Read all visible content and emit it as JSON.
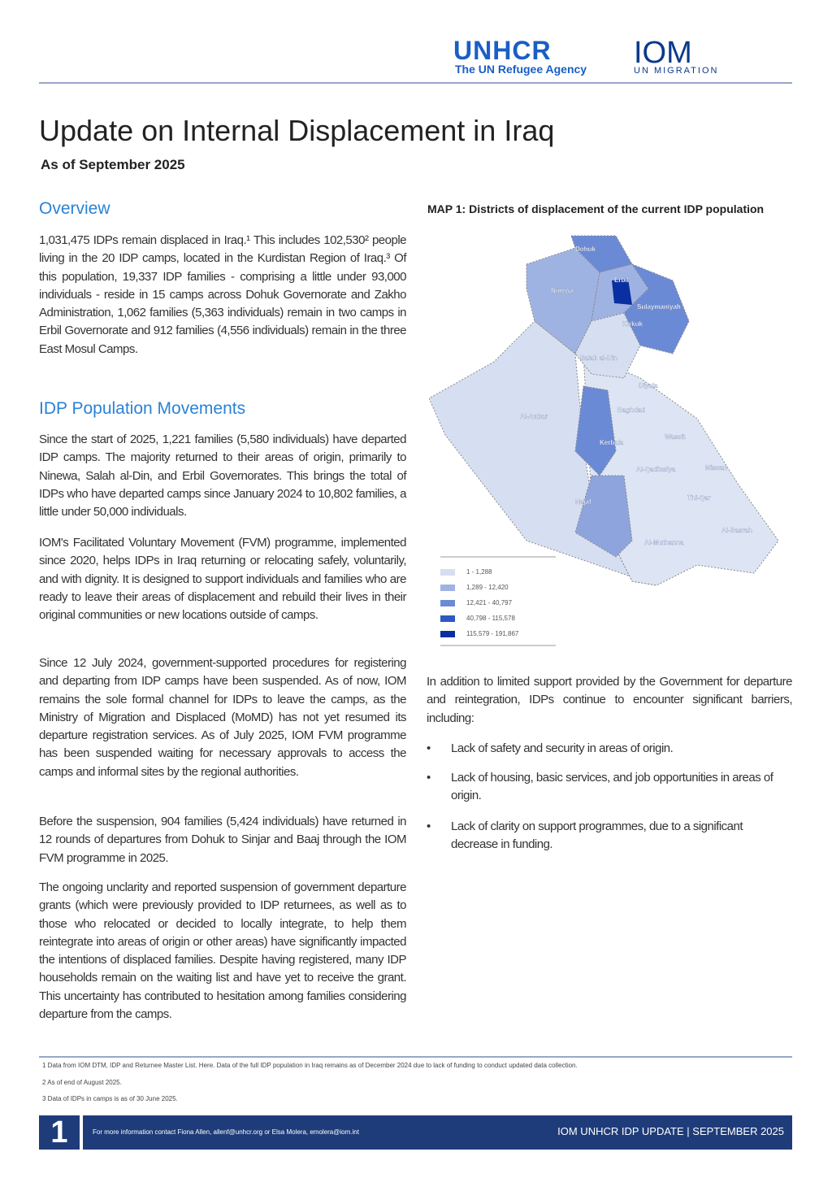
{
  "header": {
    "unhcr_logo": "UNHCR",
    "unhcr_tagline": "The UN Refugee Agency",
    "iom_logo": "IOM",
    "iom_tagline": "UN MIGRATION"
  },
  "title": "Update on Internal Displacement in Iraq",
  "subtitle": "As of September 2025",
  "overview": {
    "heading": "Overview",
    "text": "1,031,475 IDPs remain displaced in Iraq.¹ This includes 102,530² people living in the 20 IDP camps, located in the Kurdistan Region of Iraq.³ Of this population, 19,337 IDP families - comprising a little under 93,000 individuals - reside in 15 camps across Dohuk Governorate and Zakho Administration, 1,062 families (5,363 individuals) remain in two camps in Erbil Governorate and 912 families (4,556 individuals) remain in the three East Mosul Camps."
  },
  "movements": {
    "heading": "IDP Population Movements",
    "paragraphs": [
      "Since the start of 2025, 1,221 families (5,580 individuals) have departed IDP camps. The majority returned to their areas of origin, primarily to Ninewa, Salah al-Din, and Erbil Governorates. This brings the total of IDPs who have departed camps since January 2024 to 10,802 families, a little under 50,000 individuals.",
      "IOM's Facilitated Voluntary Movement (FVM) programme, implemented since 2020, helps IDPs in Iraq returning or relocating safely, voluntarily, and with dignity. It is designed to support individuals and families who are ready to leave their areas of displacement and rebuild their lives in their original communities or new locations outside of camps.",
      "Since 12 July 2024, government-supported procedures for registering and departing from IDP camps have been suspended. As of now, IOM remains the sole formal channel for IDPs to leave the camps, as the Ministry of Migration and Displaced (MoMD) has not yet resumed its departure registration services. As of July 2025, IOM FVM programme has been suspended waiting for necessary approvals to access the camps and informal sites by the regional authorities.",
      "Before the suspension, 904 families (5,424 individuals) have returned in 12 rounds of departures from Dohuk to Sinjar and Baaj through the IOM FVM programme in 2025.",
      "The ongoing unclarity and reported suspension of government departure grants (which were previously provided to IDP returnees, as well as to those who relocated or decided to locally integrate, to help them reintegrate into areas of origin or other areas) have significantly impacted the intentions of displaced families. Despite having registered, many IDP households remain on the waiting list and have yet to receive the grant. This uncertainty has contributed to hesitation among families considering departure from the camps."
    ]
  },
  "map": {
    "title": "MAP 1: Districts of displacement of the current IDP population",
    "labels": [
      "Dohuk",
      "Ninewa",
      "Erbil",
      "Sulaymaniyah",
      "Kirkuk",
      "Salah al-Din",
      "Diyala",
      "Al-Anbar",
      "Baghdad",
      "Kerbala",
      "Wassit",
      "Al-Qadissiya",
      "Missan",
      "Najaf",
      "Thi-Qar",
      "Al-Basrah",
      "Al-Muthanna"
    ],
    "legend": [
      {
        "label": "1 - 1,288",
        "color": "#d6dff1"
      },
      {
        "label": "1,289 - 12,420",
        "color": "#9fb3e3"
      },
      {
        "label": "12,421 - 40,797",
        "color": "#6b8ad6"
      },
      {
        "label": "40,798 - 115,578",
        "color": "#2e59c4"
      },
      {
        "label": "115,579 - 191,867",
        "color": "#0a2fa0"
      }
    ]
  },
  "barriers": {
    "intro": "In addition to limited support provided by the Government for departure and reintegration, IDPs continue to encounter significant barriers, including:",
    "items": [
      "Lack of safety and security in areas of origin.",
      "Lack of housing, basic services, and job opportunities in areas of origin.",
      "Lack of clarity on support programmes, due to a significant decrease in funding."
    ]
  },
  "footnotes": [
    "1 Data from IOM DTM, IDP and Returnee Master List. Here. Data of the full IDP population in Iraq remains as of December 2024 due to lack of funding to conduct updated data collection.",
    "2 As of end of August 2025.",
    "3 Data of IDPs in camps is as of 30 June 2025."
  ],
  "footer": {
    "page": "1",
    "contact": "For more information contact Fiona Allen, allenf@unhcr.org or Elsa Molera, emolera@iom.int",
    "publication": "IOM UNHCR IDP UPDATE  | SEPTEMBER 2025"
  }
}
